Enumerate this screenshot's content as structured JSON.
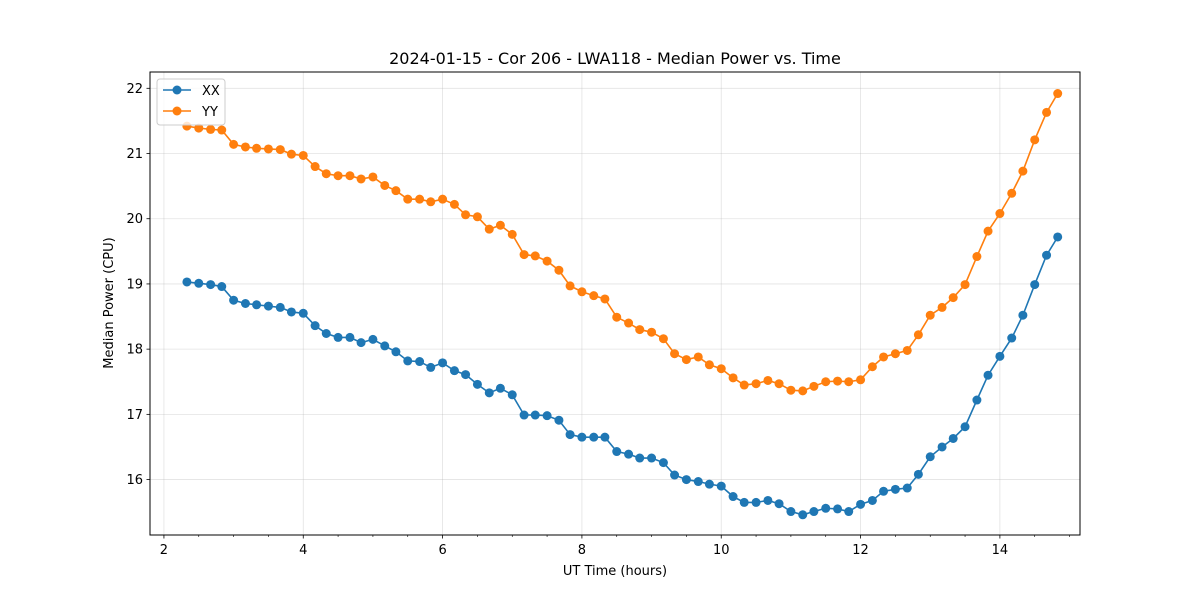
{
  "chart_data": {
    "type": "line",
    "title": "2024-01-15 - Cor 206 - LWA118 - Median Power vs. Time",
    "xlabel": "UT Time (hours)",
    "ylabel": "Median Power (CPU)",
    "xlim": [
      1.8,
      15.15
    ],
    "ylim": [
      15.15,
      22.25
    ],
    "xticks": [
      2,
      4,
      6,
      8,
      10,
      12,
      14
    ],
    "yticks": [
      16,
      17,
      18,
      19,
      20,
      21,
      22
    ],
    "grid": true,
    "legend_position": "top-left",
    "x": [
      2.33,
      2.5,
      2.67,
      2.83,
      3.0,
      3.17,
      3.33,
      3.5,
      3.67,
      3.83,
      4.0,
      4.17,
      4.33,
      4.5,
      4.67,
      4.83,
      5.0,
      5.17,
      5.33,
      5.5,
      5.67,
      5.83,
      6.0,
      6.17,
      6.33,
      6.5,
      6.67,
      6.83,
      7.0,
      7.17,
      7.33,
      7.5,
      7.67,
      7.83,
      8.0,
      8.17,
      8.33,
      8.5,
      8.67,
      8.83,
      9.0,
      9.17,
      9.33,
      9.5,
      9.67,
      9.83,
      10.0,
      10.17,
      10.33,
      10.5,
      10.67,
      10.83,
      11.0,
      11.17,
      11.33,
      11.5,
      11.67,
      11.83,
      12.0,
      12.17,
      12.33,
      12.5,
      12.67,
      12.83,
      13.0,
      13.17,
      13.33,
      13.5,
      13.67,
      13.83,
      14.0,
      14.17,
      14.33,
      14.5,
      14.67,
      14.83
    ],
    "series": [
      {
        "name": "XX",
        "color": "#1f77b4",
        "values": [
          19.03,
          19.01,
          18.99,
          18.96,
          18.75,
          18.7,
          18.68,
          18.66,
          18.64,
          18.57,
          18.55,
          18.36,
          18.24,
          18.18,
          18.18,
          18.1,
          18.15,
          18.05,
          17.96,
          17.82,
          17.81,
          17.72,
          17.79,
          17.67,
          17.61,
          17.46,
          17.33,
          17.4,
          17.3,
          16.99,
          16.99,
          16.98,
          16.91,
          16.69,
          16.65,
          16.65,
          16.65,
          16.43,
          16.39,
          16.33,
          16.33,
          16.26,
          16.07,
          16.0,
          15.97,
          15.93,
          15.9,
          15.74,
          15.65,
          15.65,
          15.68,
          15.63,
          15.51,
          15.46,
          15.51,
          15.56,
          15.55,
          15.51,
          15.62,
          15.68,
          15.82,
          15.85,
          15.87,
          16.08,
          16.35,
          16.5,
          16.63,
          16.81,
          17.22,
          17.6,
          17.89,
          18.17,
          18.52,
          18.99,
          19.44,
          19.72
        ]
      },
      {
        "name": "YY",
        "color": "#ff7f0e",
        "values": [
          21.42,
          21.39,
          21.37,
          21.36,
          21.14,
          21.1,
          21.08,
          21.07,
          21.06,
          20.99,
          20.97,
          20.8,
          20.69,
          20.66,
          20.66,
          20.61,
          20.64,
          20.51,
          20.43,
          20.3,
          20.3,
          20.26,
          20.3,
          20.22,
          20.06,
          20.03,
          19.84,
          19.9,
          19.76,
          19.45,
          19.43,
          19.35,
          19.21,
          18.97,
          18.88,
          18.82,
          18.77,
          18.49,
          18.4,
          18.3,
          18.26,
          18.16,
          17.93,
          17.84,
          17.88,
          17.76,
          17.7,
          17.56,
          17.45,
          17.47,
          17.52,
          17.47,
          17.37,
          17.36,
          17.43,
          17.5,
          17.51,
          17.5,
          17.53,
          17.73,
          17.88,
          17.93,
          17.98,
          18.22,
          18.52,
          18.64,
          18.79,
          18.99,
          19.42,
          19.81,
          20.08,
          20.39,
          20.73,
          21.21,
          21.63,
          21.92
        ]
      }
    ]
  }
}
